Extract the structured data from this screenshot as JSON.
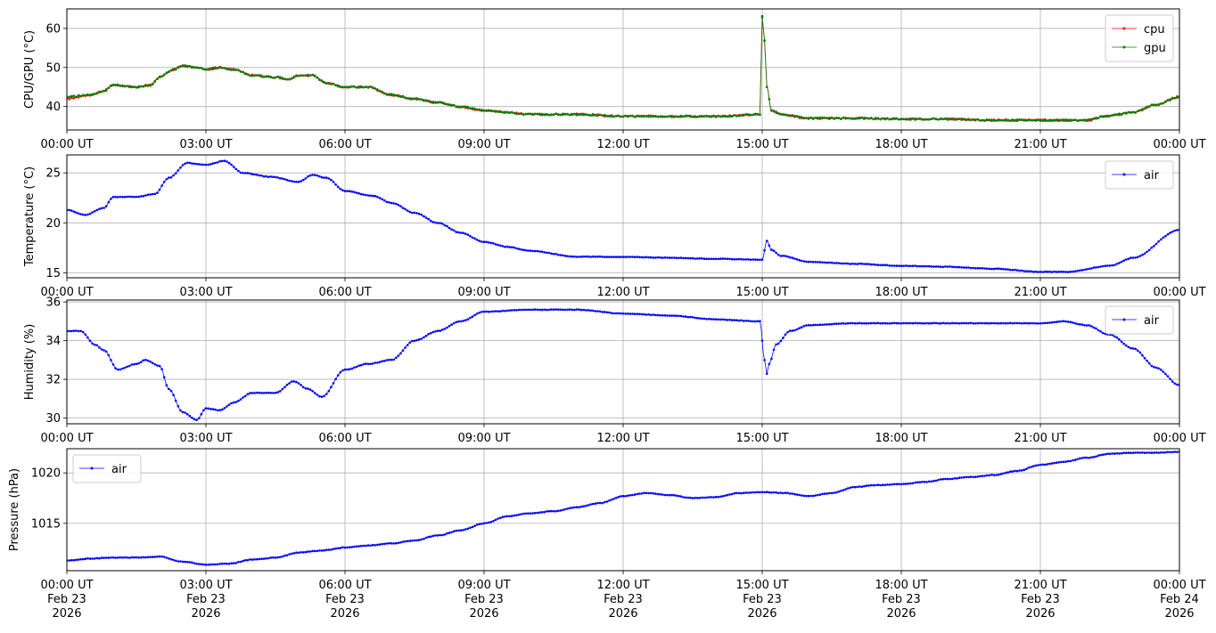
{
  "chart_data": [
    {
      "type": "line",
      "ylabel": "CPU/GPU (°C)",
      "ylim": [
        34,
        65
      ],
      "yticks": [
        40,
        50,
        60
      ],
      "xlim": [
        "00:00",
        "24:00"
      ],
      "xticks": [
        "00:00 UT",
        "03:00 UT",
        "06:00 UT",
        "09:00 UT",
        "12:00 UT",
        "15:00 UT",
        "18:00 UT",
        "21:00 UT",
        "00:00 UT"
      ],
      "grid": true,
      "legend_position": "top-right",
      "series": [
        {
          "name": "cpu",
          "color": "#ff0000",
          "x_hours": [
            0,
            0.5,
            0.8,
            1,
            1.5,
            1.8,
            2,
            2.3,
            2.5,
            2.8,
            3,
            3.3,
            3.6,
            4,
            4.5,
            4.8,
            5,
            5.3,
            5.6,
            6,
            6.5,
            7,
            7.5,
            8,
            8.5,
            9,
            10,
            11,
            12,
            13,
            14,
            14.95,
            15,
            15.05,
            15.1,
            15.2,
            15.4,
            16,
            17,
            18,
            19,
            20,
            21,
            22,
            22.4,
            23,
            23.5,
            24
          ],
          "values": [
            42,
            43,
            44,
            45.5,
            45,
            45.5,
            47.5,
            49.5,
            50.5,
            50,
            49.5,
            50,
            49.5,
            48,
            47.5,
            47,
            48,
            48,
            46,
            45,
            45,
            43,
            42,
            41,
            40,
            39,
            38,
            38,
            37.5,
            37.5,
            37.5,
            38,
            63,
            57,
            45,
            39,
            38,
            37,
            37,
            36.8,
            36.8,
            36.5,
            36.5,
            36.5,
            37.5,
            38.5,
            40.5,
            42.5
          ]
        },
        {
          "name": "gpu",
          "color": "#008000",
          "x_hours": [
            0,
            0.5,
            0.8,
            1,
            1.5,
            1.8,
            2,
            2.3,
            2.5,
            2.8,
            3,
            3.3,
            3.6,
            4,
            4.5,
            4.8,
            5,
            5.3,
            5.6,
            6,
            6.5,
            7,
            7.5,
            8,
            8.5,
            9,
            10,
            11,
            12,
            13,
            14,
            14.95,
            15,
            15.05,
            15.1,
            15.2,
            15.4,
            16,
            17,
            18,
            19,
            20,
            21,
            22,
            22.4,
            23,
            23.5,
            24
          ],
          "values": [
            42.5,
            43,
            44,
            45.5,
            45,
            45.5,
            47.5,
            49.5,
            50.5,
            50,
            49.5,
            50,
            49.5,
            48,
            47.5,
            47,
            48,
            48,
            46,
            45,
            45,
            43,
            42,
            41,
            40,
            39,
            38,
            38,
            37.5,
            37.5,
            37.5,
            38,
            63,
            57,
            45,
            39,
            38,
            37,
            37,
            36.8,
            36.8,
            36.5,
            36.5,
            36.5,
            37.5,
            38.5,
            40.5,
            42.5
          ]
        }
      ]
    },
    {
      "type": "line",
      "ylabel": "Temperature (°C)",
      "ylim": [
        14.5,
        26.8
      ],
      "yticks": [
        15,
        20,
        25
      ],
      "xlim": [
        "00:00",
        "24:00"
      ],
      "xticks": [
        "00:00 UT",
        "03:00 UT",
        "06:00 UT",
        "09:00 UT",
        "12:00 UT",
        "15:00 UT",
        "18:00 UT",
        "21:00 UT",
        "00:00 UT"
      ],
      "grid": true,
      "legend_position": "top-right",
      "series": [
        {
          "name": "air",
          "color": "#0000ff",
          "x_hours": [
            0,
            0.4,
            0.8,
            1,
            1.5,
            1.9,
            2.2,
            2.6,
            3,
            3.4,
            3.8,
            4.4,
            5,
            5.3,
            5.6,
            6,
            6.6,
            7,
            7.5,
            8,
            8.5,
            9,
            9.5,
            10,
            11,
            12,
            13,
            14,
            15,
            15.1,
            15.2,
            15.4,
            16,
            17,
            18,
            19,
            20,
            21,
            21.6,
            22.5,
            23,
            24
          ],
          "values": [
            21.3,
            20.8,
            21.5,
            22.6,
            22.6,
            22.9,
            24.5,
            26.0,
            25.8,
            26.2,
            25.0,
            24.6,
            24.1,
            24.8,
            24.5,
            23.2,
            22.7,
            22.0,
            21.0,
            20.0,
            19.0,
            18.1,
            17.6,
            17.2,
            16.6,
            16.6,
            16.5,
            16.4,
            16.3,
            18.2,
            17.3,
            16.7,
            16.1,
            15.9,
            15.7,
            15.6,
            15.4,
            15.1,
            15.1,
            15.7,
            16.5,
            19.3
          ]
        }
      ]
    },
    {
      "type": "line",
      "ylabel": "Humidity (%)",
      "ylim": [
        29.7,
        36.1
      ],
      "yticks": [
        30,
        32,
        34,
        36
      ],
      "xlim": [
        "00:00",
        "24:00"
      ],
      "xticks": [
        "00:00 UT",
        "03:00 UT",
        "06:00 UT",
        "09:00 UT",
        "12:00 UT",
        "15:00 UT",
        "18:00 UT",
        "21:00 UT",
        "00:00 UT"
      ],
      "grid": true,
      "legend_position": "top-right",
      "series": [
        {
          "name": "air",
          "color": "#0000ff",
          "x_hours": [
            0,
            0.3,
            0.6,
            0.8,
            1.1,
            1.5,
            1.7,
            2,
            2.2,
            2.5,
            2.8,
            3,
            3.3,
            3.6,
            4,
            4.5,
            4.9,
            5.2,
            5.5,
            6,
            6.5,
            7,
            7.5,
            8,
            8.5,
            9,
            10,
            11,
            12,
            13,
            14,
            14.95,
            15.05,
            15.1,
            15.15,
            15.3,
            15.6,
            16,
            17,
            18,
            19,
            20,
            21,
            21.5,
            22,
            22.5,
            23,
            23.5,
            24
          ],
          "values": [
            34.5,
            34.5,
            33.8,
            33.5,
            32.5,
            32.8,
            33.0,
            32.7,
            31.5,
            30.3,
            29.9,
            30.5,
            30.4,
            30.8,
            31.3,
            31.3,
            31.9,
            31.5,
            31.1,
            32.5,
            32.8,
            33.0,
            34.0,
            34.5,
            35.0,
            35.5,
            35.6,
            35.6,
            35.4,
            35.3,
            35.1,
            35.0,
            33.0,
            32.3,
            32.8,
            33.8,
            34.5,
            34.8,
            34.9,
            34.9,
            34.9,
            34.9,
            34.9,
            35.0,
            34.8,
            34.3,
            33.6,
            32.6,
            31.7
          ]
        }
      ]
    },
    {
      "type": "line",
      "ylabel": "Pressure (hPa)",
      "ylim": [
        1010.3,
        1022.4
      ],
      "yticks": [
        1015,
        1020
      ],
      "xlim": [
        "00:00",
        "24:00"
      ],
      "xticks": [
        "00:00 UT\nFeb 23\n2026",
        "03:00 UT\nFeb 23\n2026",
        "06:00 UT\nFeb 23\n2026",
        "09:00 UT\nFeb 23\n2026",
        "12:00 UT\nFeb 23\n2026",
        "15:00 UT\nFeb 23\n2026",
        "18:00 UT\nFeb 23\n2026",
        "21:00 UT\nFeb 23\n2026",
        "00:00 UT\nFeb 24\n2026"
      ],
      "grid": true,
      "legend_position": "top-left",
      "series": [
        {
          "name": "air",
          "color": "#0000ff",
          "x_hours": [
            0,
            0.5,
            1,
            1.5,
            2,
            2.5,
            3,
            3.5,
            4,
            4.5,
            5,
            5.5,
            6,
            6.5,
            7,
            7.5,
            8,
            8.5,
            9,
            9.5,
            10,
            10.5,
            11,
            11.5,
            12,
            12.5,
            13,
            13.5,
            14,
            14.5,
            15,
            15.5,
            16,
            16.5,
            17,
            17.5,
            18,
            18.5,
            19,
            19.5,
            20,
            20.5,
            21,
            21.5,
            22,
            22.5,
            23,
            23.5,
            24
          ],
          "values": [
            1011.3,
            1011.5,
            1011.6,
            1011.6,
            1011.7,
            1011.2,
            1010.9,
            1011.0,
            1011.4,
            1011.6,
            1012.1,
            1012.3,
            1012.6,
            1012.8,
            1013.0,
            1013.3,
            1013.8,
            1014.3,
            1015.0,
            1015.7,
            1016.0,
            1016.2,
            1016.6,
            1017.0,
            1017.7,
            1018.0,
            1017.8,
            1017.5,
            1017.6,
            1018.0,
            1018.1,
            1018.0,
            1017.7,
            1018.0,
            1018.6,
            1018.8,
            1018.9,
            1019.1,
            1019.4,
            1019.6,
            1019.8,
            1020.2,
            1020.8,
            1021.1,
            1021.5,
            1021.9,
            1022.0,
            1022.0,
            1022.1
          ]
        }
      ]
    }
  ]
}
